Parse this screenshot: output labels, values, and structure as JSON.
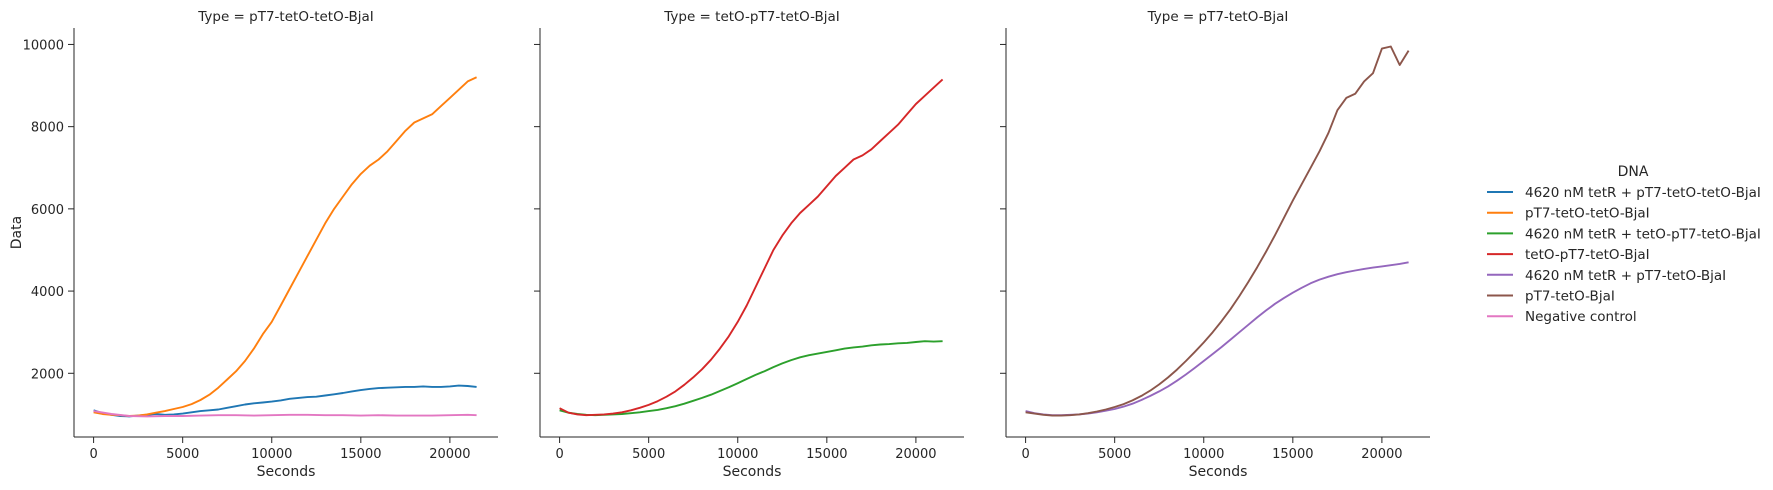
{
  "chart_data": [
    {
      "type": "line",
      "title": "Type = pT7-tetO-tetO-BjaI",
      "xlabel": "Seconds",
      "ylabel": "Data",
      "xlim": [
        -1100,
        22700
      ],
      "ylim": [
        450,
        10400
      ],
      "xticks": [
        0,
        5000,
        10000,
        15000,
        20000
      ],
      "yticks": [
        2000,
        4000,
        6000,
        8000,
        10000
      ],
      "series": [
        {
          "name": "4620 nM tetR + pT7-tetO-tetO-BjaI",
          "color": "#1f77b4",
          "x": [
            0,
            500,
            1000,
            1500,
            2000,
            2500,
            3000,
            3500,
            4000,
            4500,
            5000,
            5500,
            6000,
            6500,
            7000,
            7500,
            8000,
            8500,
            9000,
            9500,
            10000,
            10500,
            11000,
            11500,
            12000,
            12500,
            13000,
            13500,
            14000,
            14500,
            15000,
            15500,
            16000,
            16500,
            17000,
            17500,
            18000,
            18500,
            19000,
            19500,
            20000,
            20500,
            21000,
            21500
          ],
          "y": [
            1100,
            1030,
            990,
            960,
            950,
            970,
            990,
            1010,
            990,
            1000,
            1020,
            1050,
            1080,
            1100,
            1120,
            1160,
            1200,
            1240,
            1270,
            1290,
            1310,
            1340,
            1380,
            1400,
            1420,
            1430,
            1460,
            1490,
            1520,
            1560,
            1590,
            1620,
            1640,
            1650,
            1660,
            1670,
            1670,
            1680,
            1670,
            1670,
            1680,
            1700,
            1690,
            1670
          ]
        },
        {
          "name": "pT7-tetO-tetO-BjaI",
          "color": "#ff7f0e",
          "x": [
            0,
            500,
            1000,
            1500,
            2000,
            2500,
            3000,
            3500,
            4000,
            4500,
            5000,
            5500,
            6000,
            6500,
            7000,
            7500,
            8000,
            8500,
            9000,
            9500,
            10000,
            10500,
            11000,
            11500,
            12000,
            12500,
            13000,
            13500,
            14000,
            14500,
            15000,
            15500,
            16000,
            16500,
            17000,
            17500,
            18000,
            18500,
            19000,
            19500,
            20000,
            20500,
            21000,
            21500
          ],
          "y": [
            1050,
            1010,
            990,
            980,
            960,
            970,
            1000,
            1040,
            1080,
            1130,
            1180,
            1250,
            1350,
            1480,
            1650,
            1850,
            2050,
            2300,
            2600,
            2950,
            3250,
            3650,
            4050,
            4450,
            4850,
            5250,
            5650,
            6000,
            6300,
            6600,
            6850,
            7050,
            7200,
            7400,
            7650,
            7900,
            8100,
            8200,
            8300,
            8500,
            8700,
            8900,
            9100,
            9200
          ]
        },
        {
          "name": "Negative control",
          "color": "#e377c2",
          "x": [
            0,
            1000,
            2000,
            3000,
            4000,
            5000,
            6000,
            7000,
            8000,
            9000,
            10000,
            11000,
            12000,
            13000,
            14000,
            15000,
            16000,
            17000,
            18000,
            19000,
            20000,
            21000,
            21500
          ],
          "y": [
            1080,
            1010,
            960,
            950,
            960,
            960,
            970,
            980,
            980,
            970,
            980,
            990,
            990,
            980,
            980,
            970,
            980,
            970,
            970,
            970,
            980,
            990,
            980
          ]
        }
      ]
    },
    {
      "type": "line",
      "title": "Type = tetO-pT7-tetO-BjaI",
      "xlabel": "Seconds",
      "ylabel": "",
      "xlim": [
        -1100,
        22700
      ],
      "ylim": [
        450,
        10400
      ],
      "xticks": [
        0,
        5000,
        10000,
        15000,
        20000
      ],
      "yticks": [
        2000,
        4000,
        6000,
        8000,
        10000
      ],
      "series": [
        {
          "name": "4620 nM tetR + tetO-pT7-tetO-BjaI",
          "color": "#2ca02c",
          "x": [
            0,
            500,
            1000,
            1500,
            2000,
            2500,
            3000,
            3500,
            4000,
            4500,
            5000,
            5500,
            6000,
            6500,
            7000,
            7500,
            8000,
            8500,
            9000,
            9500,
            10000,
            10500,
            11000,
            11500,
            12000,
            12500,
            13000,
            13500,
            14000,
            14500,
            15000,
            15500,
            16000,
            16500,
            17000,
            17500,
            18000,
            18500,
            19000,
            19500,
            20000,
            20500,
            21000,
            21500
          ],
          "y": [
            1100,
            1040,
            1010,
            990,
            980,
            990,
            1000,
            1010,
            1030,
            1050,
            1080,
            1110,
            1150,
            1200,
            1260,
            1330,
            1400,
            1480,
            1570,
            1660,
            1760,
            1860,
            1960,
            2050,
            2150,
            2240,
            2320,
            2390,
            2440,
            2480,
            2520,
            2560,
            2600,
            2630,
            2650,
            2680,
            2700,
            2710,
            2730,
            2740,
            2760,
            2780,
            2770,
            2780
          ]
        },
        {
          "name": "tetO-pT7-tetO-BjaI",
          "color": "#d62728",
          "x": [
            0,
            500,
            1000,
            1500,
            2000,
            2500,
            3000,
            3500,
            4000,
            4500,
            5000,
            5500,
            6000,
            6500,
            7000,
            7500,
            8000,
            8500,
            9000,
            9500,
            10000,
            10500,
            11000,
            11500,
            12000,
            12500,
            13000,
            13500,
            14000,
            14500,
            15000,
            15500,
            16000,
            16500,
            17000,
            17500,
            18000,
            18500,
            19000,
            19500,
            20000,
            20500,
            21000,
            21500
          ],
          "y": [
            1150,
            1040,
            1000,
            980,
            990,
            1000,
            1020,
            1050,
            1100,
            1160,
            1230,
            1320,
            1430,
            1560,
            1720,
            1900,
            2100,
            2330,
            2600,
            2900,
            3250,
            3650,
            4100,
            4550,
            5000,
            5350,
            5650,
            5900,
            6100,
            6300,
            6550,
            6800,
            7000,
            7200,
            7300,
            7450,
            7650,
            7850,
            8050,
            8300,
            8550,
            8750,
            8950,
            9150
          ]
        }
      ]
    },
    {
      "type": "line",
      "title": "Type = pT7-tetO-BjaI",
      "xlabel": "Seconds",
      "ylabel": "",
      "xlim": [
        -1100,
        22700
      ],
      "ylim": [
        450,
        10400
      ],
      "xticks": [
        0,
        5000,
        10000,
        15000,
        20000
      ],
      "yticks": [
        2000,
        4000,
        6000,
        8000,
        10000
      ],
      "series": [
        {
          "name": "4620 nM tetR + pT7-tetO-BjaI",
          "color": "#9467bd",
          "x": [
            0,
            500,
            1000,
            1500,
            2000,
            2500,
            3000,
            3500,
            4000,
            4500,
            5000,
            5500,
            6000,
            6500,
            7000,
            7500,
            8000,
            8500,
            9000,
            9500,
            10000,
            10500,
            11000,
            11500,
            12000,
            12500,
            13000,
            13500,
            14000,
            14500,
            15000,
            15500,
            16000,
            16500,
            17000,
            17500,
            18000,
            18500,
            19000,
            19500,
            20000,
            20500,
            21000,
            21500
          ],
          "y": [
            1080,
            1030,
            1000,
            980,
            980,
            990,
            1000,
            1020,
            1050,
            1090,
            1130,
            1190,
            1260,
            1350,
            1450,
            1560,
            1680,
            1820,
            1970,
            2130,
            2300,
            2470,
            2640,
            2820,
            3000,
            3180,
            3360,
            3530,
            3690,
            3830,
            3960,
            4080,
            4190,
            4280,
            4350,
            4410,
            4460,
            4500,
            4540,
            4570,
            4600,
            4630,
            4660,
            4700
          ]
        },
        {
          "name": "pT7-tetO-BjaI",
          "color": "#8c564b",
          "x": [
            0,
            500,
            1000,
            1500,
            2000,
            2500,
            3000,
            3500,
            4000,
            4500,
            5000,
            5500,
            6000,
            6500,
            7000,
            7500,
            8000,
            8500,
            9000,
            9500,
            10000,
            10500,
            11000,
            11500,
            12000,
            12500,
            13000,
            13500,
            14000,
            14500,
            15000,
            15500,
            16000,
            16500,
            17000,
            17500,
            18000,
            18500,
            19000,
            19500,
            20000,
            20500,
            21000,
            21500
          ],
          "y": [
            1050,
            1020,
            990,
            970,
            970,
            980,
            1000,
            1030,
            1070,
            1120,
            1180,
            1250,
            1340,
            1450,
            1580,
            1730,
            1900,
            2090,
            2300,
            2520,
            2750,
            3000,
            3270,
            3560,
            3880,
            4220,
            4580,
            4960,
            5360,
            5780,
            6200,
            6600,
            7000,
            7400,
            7850,
            8400,
            8700,
            8800,
            9100,
            9300,
            9900,
            9950,
            9500,
            9850
          ]
        },
        {
          "name": "Negative control",
          "color": "#e377c2",
          "x": [],
          "y": []
        }
      ]
    }
  ],
  "legend": {
    "title": "DNA",
    "placement": "right",
    "entries": [
      {
        "label": "4620 nM tetR + pT7-tetO-tetO-BjaI",
        "color": "#1f77b4"
      },
      {
        "label": "pT7-tetO-tetO-BjaI",
        "color": "#ff7f0e"
      },
      {
        "label": "4620 nM tetR + tetO-pT7-tetO-BjaI",
        "color": "#2ca02c"
      },
      {
        "label": "tetO-pT7-tetO-BjaI",
        "color": "#d62728"
      },
      {
        "label": "4620 nM tetR + pT7-tetO-BjaI",
        "color": "#9467bd"
      },
      {
        "label": "pT7-tetO-BjaI",
        "color": "#8c564b"
      },
      {
        "label": "Negative control",
        "color": "#e377c2"
      }
    ]
  }
}
